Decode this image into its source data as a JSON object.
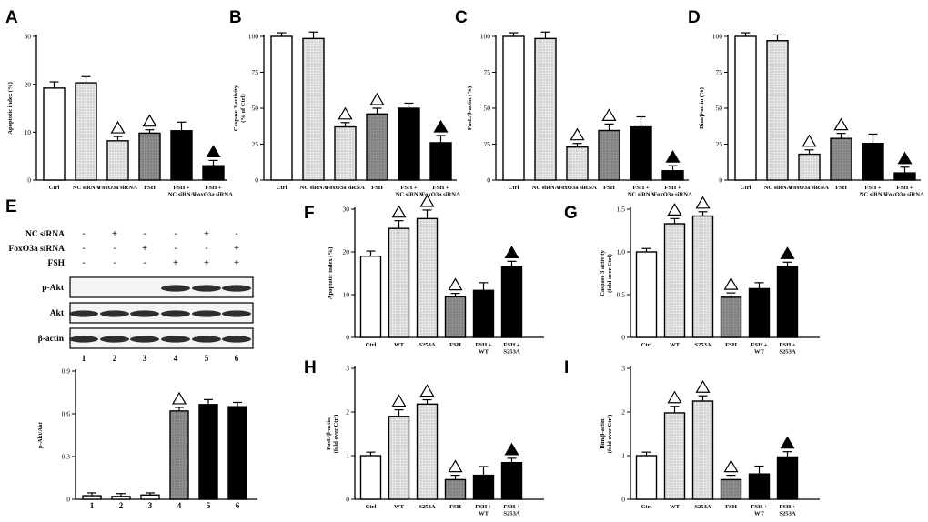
{
  "panels": [
    {
      "id": "A",
      "type": "bar",
      "ylabel": "Apoptotic index (%)",
      "ylim": [
        0,
        30
      ],
      "ticks": [
        0,
        10,
        20,
        30
      ],
      "tick_labels": [
        "0",
        "10",
        "20",
        "30"
      ],
      "categories": [
        "Ctrl",
        "NC siRNA",
        "FoxO3a siRNA",
        "FSH",
        "FSH +\nNC siRNA",
        "FSH +\nFoxO3a siRNA"
      ],
      "values": [
        19.2,
        20.3,
        8.2,
        9.8,
        10.3,
        3.0
      ],
      "errors": [
        1.3,
        1.3,
        0.9,
        0.7,
        1.8,
        1.1
      ],
      "markers": [
        "",
        "",
        "open",
        "open",
        "",
        "filled"
      ],
      "fills": [
        "white",
        "dots",
        "dots",
        "gray",
        "black",
        "black"
      ]
    },
    {
      "id": "B",
      "type": "bar",
      "ylabel": "Caspase 3 activity\n(% of Ctrl)",
      "ylim": [
        0,
        100
      ],
      "ticks": [
        0,
        25,
        50,
        75,
        100
      ],
      "tick_labels": [
        "0",
        "25",
        "50",
        "75",
        "100"
      ],
      "categories": [
        "Ctrl",
        "NC siRNA",
        "FoxO3a siRNA",
        "FSH",
        "FSH +\nNC siRNA",
        "FSH +\nFoxO3a siRNA"
      ],
      "values": [
        100,
        98.5,
        37,
        46,
        50,
        26
      ],
      "errors": [
        2.5,
        4.5,
        3,
        4,
        3.5,
        5
      ],
      "markers": [
        "",
        "",
        "open",
        "open",
        "",
        "filled"
      ],
      "fills": [
        "white",
        "dots",
        "dots",
        "gray",
        "black",
        "black"
      ]
    },
    {
      "id": "C",
      "type": "bar",
      "ylabel": "FasL/β-actin (%)",
      "ylim": [
        0,
        100
      ],
      "ticks": [
        0,
        25,
        50,
        75,
        100
      ],
      "tick_labels": [
        "0",
        "25",
        "50",
        "75",
        "100"
      ],
      "categories": [
        "Ctrl",
        "NC siRNA",
        "FoxO3a siRNA",
        "FSH",
        "FSH +\nNC siRNA",
        "FSH +\nFoxO3a siRNA"
      ],
      "values": [
        100,
        98.5,
        23,
        34.5,
        37,
        6.5
      ],
      "errors": [
        2.5,
        4.5,
        2.5,
        4.5,
        7,
        3.5
      ],
      "markers": [
        "",
        "",
        "open",
        "open",
        "",
        "filled"
      ],
      "fills": [
        "white",
        "dots",
        "dots",
        "gray",
        "black",
        "black"
      ]
    },
    {
      "id": "D",
      "type": "bar",
      "ylabel": "Bim/β-actin (%)",
      "ylim": [
        0,
        100
      ],
      "ticks": [
        0,
        25,
        50,
        75,
        100
      ],
      "tick_labels": [
        "0",
        "25",
        "50",
        "75",
        "100"
      ],
      "categories": [
        "Ctrl",
        "NC siRNA",
        "FoxO3a siRNA",
        "FSH",
        "FSH +\nNC siRNA",
        "FSH +\nFoxO3a siRNA"
      ],
      "values": [
        100,
        97,
        18,
        29,
        25.5,
        5
      ],
      "errors": [
        2.5,
        4,
        3,
        3.5,
        6.5,
        4
      ],
      "markers": [
        "",
        "",
        "open",
        "open",
        "",
        "filled"
      ],
      "fills": [
        "white",
        "dots",
        "dots",
        "gray",
        "black",
        "black"
      ]
    },
    {
      "id": "E",
      "type": "bar",
      "ylabel": "p-Akt/Akt",
      "ylim": [
        0,
        0.9
      ],
      "ticks": [
        0,
        0.3,
        0.6,
        0.9
      ],
      "tick_labels": [
        "0",
        "0.3",
        "0.6",
        "0.9"
      ],
      "categories": [
        "1",
        "2",
        "3",
        "4",
        "5",
        "6"
      ],
      "values": [
        0.025,
        0.02,
        0.03,
        0.62,
        0.665,
        0.65
      ],
      "errors": [
        0.02,
        0.02,
        0.015,
        0.025,
        0.035,
        0.03
      ],
      "markers": [
        "",
        "",
        "",
        "open",
        "",
        ""
      ],
      "fills": [
        "white",
        "white",
        "white",
        "gray",
        "black",
        "black"
      ]
    },
    {
      "id": "F",
      "type": "bar",
      "ylabel": "Apoptotic index (%)",
      "ylim": [
        0,
        30
      ],
      "ticks": [
        0,
        10,
        20,
        30
      ],
      "tick_labels": [
        "0",
        "10",
        "20",
        "30"
      ],
      "categories": [
        "Ctrl",
        "WT",
        "S253A",
        "FSH",
        "FSH +\nWT",
        "FSH +\nS253A"
      ],
      "values": [
        19,
        25.5,
        27.8,
        9.5,
        11,
        16.5
      ],
      "errors": [
        1.2,
        1.8,
        2,
        0.8,
        1.8,
        1.3
      ],
      "markers": [
        "",
        "open",
        "open",
        "open",
        "",
        "filled"
      ],
      "fills": [
        "white",
        "dots",
        "dots",
        "gray",
        "black",
        "black"
      ]
    },
    {
      "id": "G",
      "type": "bar",
      "ylabel": "Caspase 3 activity\n(fold over Ctrl)",
      "ylim": [
        0,
        1.5
      ],
      "ticks": [
        0,
        0.5,
        1.0,
        1.5
      ],
      "tick_labels": [
        "0",
        "0.5",
        "1.0",
        "1.5"
      ],
      "categories": [
        "Ctrl",
        "WT",
        "S253A",
        "FSH",
        "FSH +\nWT",
        "FSH +\nS253A"
      ],
      "values": [
        1.0,
        1.33,
        1.42,
        0.47,
        0.57,
        0.83
      ],
      "errors": [
        0.04,
        0.06,
        0.05,
        0.05,
        0.07,
        0.05
      ],
      "markers": [
        "",
        "open",
        "open",
        "open",
        "",
        "filled"
      ],
      "fills": [
        "white",
        "dots",
        "dots",
        "gray",
        "black",
        "black"
      ]
    },
    {
      "id": "H",
      "type": "bar",
      "ylabel": "FasL/β-actin\n(fold over Ctrl)",
      "ylim": [
        0,
        3
      ],
      "ticks": [
        0,
        1,
        2,
        3
      ],
      "tick_labels": [
        "0",
        "1",
        "2",
        "3"
      ],
      "categories": [
        "Ctrl",
        "WT",
        "S253A",
        "FSH",
        "FSH +\nWT",
        "FSH +\nS253A"
      ],
      "values": [
        1.0,
        1.9,
        2.18,
        0.45,
        0.55,
        0.84
      ],
      "errors": [
        0.08,
        0.15,
        0.1,
        0.1,
        0.2,
        0.1
      ],
      "markers": [
        "",
        "open",
        "open",
        "open",
        "",
        "filled"
      ],
      "fills": [
        "white",
        "dots",
        "dots",
        "gray",
        "black",
        "black"
      ]
    },
    {
      "id": "I",
      "type": "bar",
      "ylabel": "Bim/β-actin\n(fold over Ctrl)",
      "ylim": [
        0,
        3
      ],
      "ticks": [
        0,
        1,
        2,
        3
      ],
      "tick_labels": [
        "0",
        "1",
        "2",
        "3"
      ],
      "categories": [
        "Ctrl",
        "WT",
        "S253A",
        "FSH",
        "FSH +\nWT",
        "FSH +\nS253A"
      ],
      "values": [
        1.0,
        1.98,
        2.25,
        0.45,
        0.58,
        0.97
      ],
      "errors": [
        0.08,
        0.15,
        0.12,
        0.1,
        0.18,
        0.12
      ],
      "markers": [
        "",
        "open",
        "open",
        "open",
        "",
        "filled"
      ],
      "fills": [
        "white",
        "dots",
        "dots",
        "gray",
        "black",
        "black"
      ]
    }
  ],
  "western": {
    "treatments": [
      {
        "name": "NC siRNA",
        "signs": [
          "-",
          "+",
          "-",
          "-",
          "+",
          "-"
        ]
      },
      {
        "name": "FoxO3a siRNA",
        "signs": [
          "-",
          "-",
          "+",
          "-",
          "-",
          "+"
        ]
      },
      {
        "name": "FSH",
        "signs": [
          "-",
          "-",
          "-",
          "+",
          "+",
          "+"
        ]
      }
    ],
    "blots": [
      {
        "name": "p-Akt",
        "intensity": [
          0,
          0,
          0,
          1,
          1,
          1
        ]
      },
      {
        "name": "Akt",
        "intensity": [
          1,
          1,
          1,
          1,
          1,
          1
        ]
      },
      {
        "name": "β-actin",
        "intensity": [
          1,
          1,
          1,
          1,
          1,
          1
        ]
      }
    ],
    "lanes": [
      "1",
      "2",
      "3",
      "4",
      "5",
      "6"
    ]
  },
  "colors": {
    "gray": "#8a8a8a",
    "black": "#000000",
    "dots": "#dcdcdc"
  }
}
